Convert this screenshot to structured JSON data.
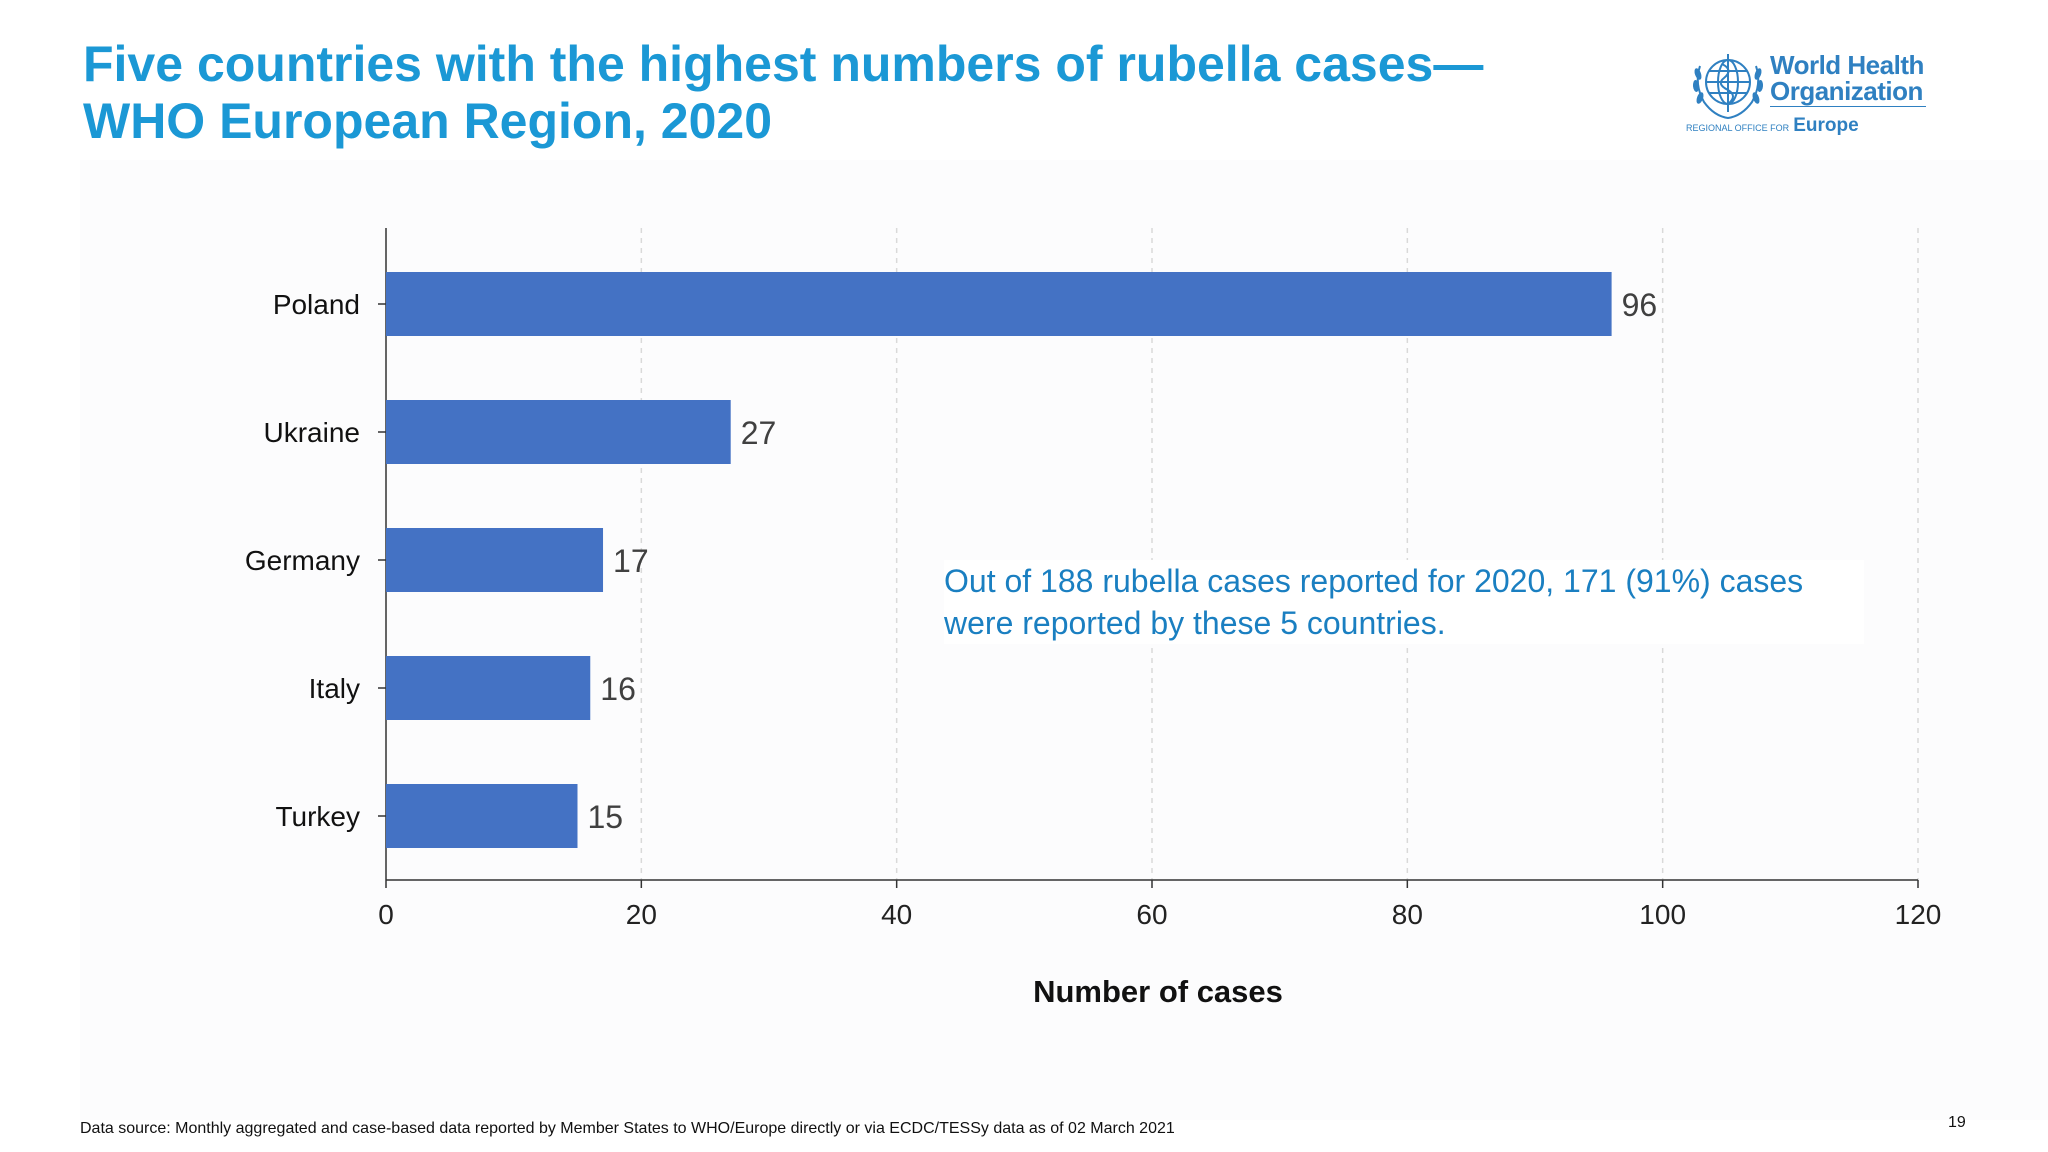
{
  "slide": {
    "title_line1": "Five countries with the highest numbers of rubella cases—",
    "title_line2": "WHO European Region, 2020",
    "annotation": "Out of 188 rubella cases reported for 2020, 171 (91%) cases were reported by these 5 countries.",
    "source": "Data source: Monthly aggregated and case-based data reported by Member States to WHO/Europe directly or via ECDC/TESSy data as of 02 March 2021",
    "page_number": "19",
    "logo": {
      "line1": "World Health",
      "line2": "Organization",
      "sub": "REGIONAL OFFICE FOR",
      "region": "Europe"
    }
  },
  "colors": {
    "title": "#1b98d5",
    "bar": "#4472c4",
    "annotation": "#1a7fc1",
    "logo": "#2f80c1"
  },
  "chart_data": {
    "type": "bar",
    "orientation": "horizontal",
    "categories": [
      "Poland",
      "Ukraine",
      "Germany",
      "Italy",
      "Turkey"
    ],
    "values": [
      96,
      27,
      17,
      16,
      15
    ],
    "data_labels": [
      "96",
      "27",
      "17",
      "16",
      "15"
    ],
    "xlabel": "Number of cases",
    "ylabel": "",
    "xlim": [
      0,
      120
    ],
    "xticks": [
      0,
      20,
      40,
      60,
      80,
      100,
      120
    ],
    "grid": "vertical dashed",
    "legend": "none"
  }
}
